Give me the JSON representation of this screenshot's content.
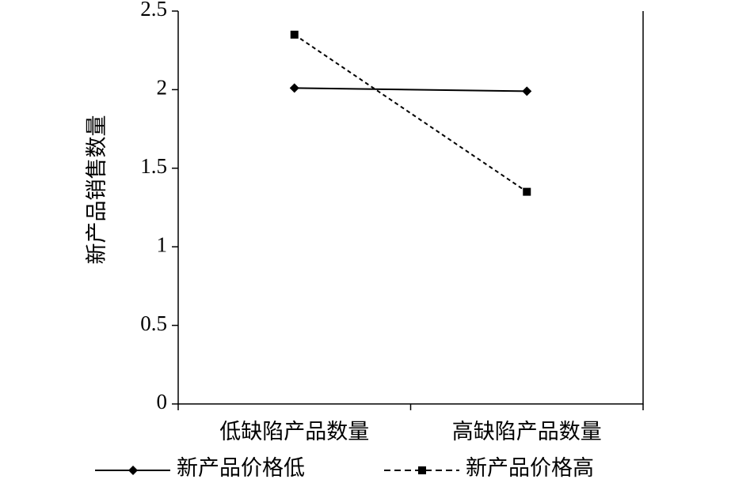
{
  "chart_data": {
    "type": "line",
    "ylabel": "新产品销售数量",
    "categories": [
      "低缺陷产品数量",
      "高缺陷产品数量"
    ],
    "series": [
      {
        "name": "新产品价格低",
        "color": "#000000",
        "marker": "diamond",
        "dash": "solid",
        "values": [
          2.01,
          1.99
        ]
      },
      {
        "name": "新产品价格高",
        "color": "#000000",
        "marker": "square",
        "dash": "dashed",
        "values": [
          2.35,
          1.35
        ]
      }
    ],
    "ylim": [
      0,
      2.5
    ],
    "yticks": [
      0,
      0.5,
      1,
      1.5,
      2,
      2.5
    ],
    "legend": "bottom"
  }
}
